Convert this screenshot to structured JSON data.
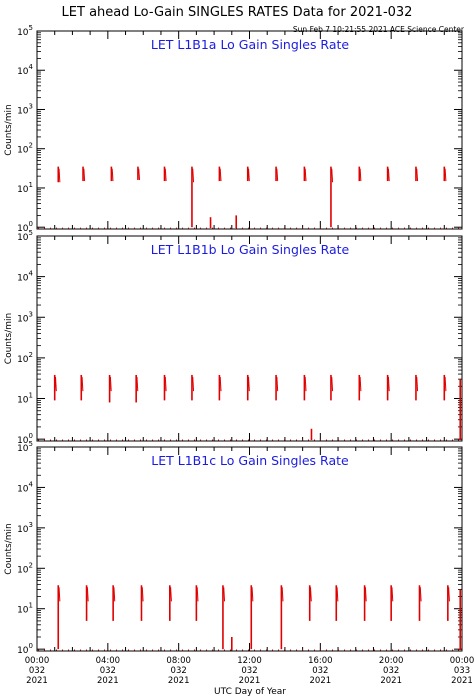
{
  "title": "LET ahead Lo-Gain SINGLES RATES Data for 2021-032",
  "timestamp": "Sun Feb  7 10:21:55 2021 ACE Science Center",
  "chart_data": [
    {
      "type": "line",
      "title": "LET L1B1a Lo Gain Singles Rate",
      "ylabel": "Counts/min",
      "xlabel": "UTC Day of Year",
      "yscale": "log",
      "ylim": [
        0.9,
        100000
      ],
      "y_tick_labels": [
        {
          "value": 1,
          "exp": "0"
        },
        {
          "value": 10,
          "exp": "1"
        },
        {
          "value": 100,
          "exp": "2"
        },
        {
          "value": 1000,
          "exp": "3"
        },
        {
          "value": 10000,
          "exp": "4"
        },
        {
          "value": 100000,
          "exp": "5"
        }
      ],
      "xlim": [
        0,
        24
      ],
      "series": [
        {
          "color": "#e00000",
          "bursts": [
            {
              "x": 1.2,
              "high": 35,
              "low": 14
            },
            {
              "x": 2.6,
              "high": 35,
              "low": 15
            },
            {
              "x": 4.2,
              "high": 35,
              "low": 15
            },
            {
              "x": 5.7,
              "high": 35,
              "low": 16
            },
            {
              "x": 7.2,
              "high": 35,
              "low": 15
            },
            {
              "x": 8.75,
              "high": 35,
              "low": 1
            },
            {
              "x": 10.3,
              "high": 35,
              "low": 15
            },
            {
              "x": 11.9,
              "high": 35,
              "low": 15
            },
            {
              "x": 13.5,
              "high": 35,
              "low": 15
            },
            {
              "x": 15.1,
              "high": 35,
              "low": 15
            },
            {
              "x": 16.6,
              "high": 35,
              "low": 1
            },
            {
              "x": 18.2,
              "high": 35,
              "low": 15
            },
            {
              "x": 19.8,
              "high": 35,
              "low": 15
            },
            {
              "x": 21.4,
              "high": 35,
              "low": 15
            },
            {
              "x": 23.0,
              "high": 35,
              "low": 15
            }
          ],
          "spikes": [
            {
              "x": 9.8,
              "value": 1.8
            },
            {
              "x": 11.25,
              "value": 2.0
            }
          ],
          "baseline": 0.95
        }
      ]
    },
    {
      "type": "line",
      "title": "LET L1B1b Lo Gain Singles Rate",
      "ylabel": "Counts/min",
      "xlabel": "UTC Day of Year",
      "yscale": "log",
      "ylim": [
        0.9,
        100000
      ],
      "y_tick_labels": [
        {
          "value": 1,
          "exp": "0"
        },
        {
          "value": 10,
          "exp": "1"
        },
        {
          "value": 100,
          "exp": "2"
        },
        {
          "value": 1000,
          "exp": "3"
        },
        {
          "value": 10000,
          "exp": "4"
        },
        {
          "value": 100000,
          "exp": "5"
        }
      ],
      "xlim": [
        0,
        24
      ],
      "series": [
        {
          "color": "#e00000",
          "bursts": [
            {
              "x": 1.0,
              "high": 38,
              "low": 9
            },
            {
              "x": 2.5,
              "high": 38,
              "low": 9
            },
            {
              "x": 4.1,
              "high": 38,
              "low": 8
            },
            {
              "x": 5.6,
              "high": 38,
              "low": 8
            },
            {
              "x": 7.2,
              "high": 38,
              "low": 9
            },
            {
              "x": 8.75,
              "high": 38,
              "low": 9
            },
            {
              "x": 10.3,
              "high": 38,
              "low": 9
            },
            {
              "x": 11.9,
              "high": 38,
              "low": 9
            },
            {
              "x": 13.5,
              "high": 38,
              "low": 9
            },
            {
              "x": 15.1,
              "high": 38,
              "low": 9
            },
            {
              "x": 16.6,
              "high": 38,
              "low": 9
            },
            {
              "x": 18.2,
              "high": 38,
              "low": 9
            },
            {
              "x": 19.8,
              "high": 38,
              "low": 9
            },
            {
              "x": 21.4,
              "high": 38,
              "low": 9
            },
            {
              "x": 23.0,
              "high": 38,
              "low": 9
            }
          ],
          "spikes": [
            {
              "x": 15.5,
              "value": 1.8
            },
            {
              "x": 23.9,
              "value": 30
            }
          ],
          "baseline": 0.95
        }
      ]
    },
    {
      "type": "line",
      "title": "LET L1B1c Lo Gain Singles Rate",
      "ylabel": "Counts/min",
      "xlabel": "UTC Day of Year",
      "yscale": "log",
      "ylim": [
        0.9,
        100000
      ],
      "y_tick_labels": [
        {
          "value": 1,
          "exp": "0"
        },
        {
          "value": 10,
          "exp": "1"
        },
        {
          "value": 100,
          "exp": "2"
        },
        {
          "value": 1000,
          "exp": "3"
        },
        {
          "value": 10000,
          "exp": "4"
        },
        {
          "value": 100000,
          "exp": "5"
        }
      ],
      "xlim": [
        0,
        24
      ],
      "x_ticks": [
        {
          "hour": 0,
          "lines": [
            "00:00",
            "032",
            "2021"
          ]
        },
        {
          "hour": 4,
          "lines": [
            "04:00",
            "032",
            "2021"
          ]
        },
        {
          "hour": 8,
          "lines": [
            "08:00",
            "032",
            "2021"
          ]
        },
        {
          "hour": 12,
          "lines": [
            "12:00",
            "032",
            "2021"
          ]
        },
        {
          "hour": 16,
          "lines": [
            "16:00",
            "032",
            "2021"
          ]
        },
        {
          "hour": 20,
          "lines": [
            "20:00",
            "032",
            "2021"
          ]
        },
        {
          "hour": 24,
          "lines": [
            "00:00",
            "033",
            "2021"
          ]
        }
      ],
      "series": [
        {
          "color": "#e00000",
          "bursts": [
            {
              "x": 1.2,
              "high": 38,
              "low": 1
            },
            {
              "x": 2.8,
              "high": 38,
              "low": 5
            },
            {
              "x": 4.3,
              "high": 38,
              "low": 5
            },
            {
              "x": 5.9,
              "high": 38,
              "low": 5
            },
            {
              "x": 7.5,
              "high": 38,
              "low": 5
            },
            {
              "x": 9.0,
              "high": 38,
              "low": 5
            },
            {
              "x": 10.5,
              "high": 38,
              "low": 1
            },
            {
              "x": 12.1,
              "high": 38,
              "low": 1
            },
            {
              "x": 13.8,
              "high": 38,
              "low": 1
            },
            {
              "x": 15.4,
              "high": 38,
              "low": 5
            },
            {
              "x": 16.9,
              "high": 38,
              "low": 5
            },
            {
              "x": 18.5,
              "high": 38,
              "low": 5
            },
            {
              "x": 20.0,
              "high": 38,
              "low": 5
            },
            {
              "x": 21.6,
              "high": 38,
              "low": 5
            },
            {
              "x": 23.2,
              "high": 38,
              "low": 5
            }
          ],
          "spikes": [
            {
              "x": 11.0,
              "value": 2.0
            },
            {
              "x": 23.9,
              "value": 30
            }
          ],
          "baseline": 0.95
        }
      ]
    }
  ]
}
